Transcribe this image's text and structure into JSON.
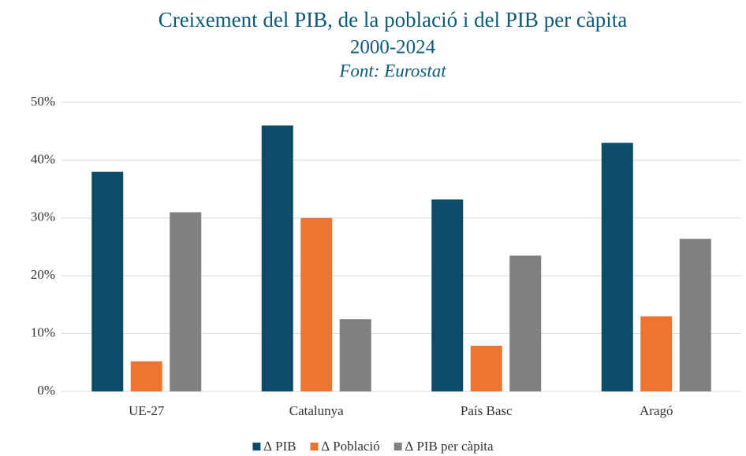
{
  "chart_data": {
    "type": "bar",
    "title": "Creixement del PIB, de la població i del PIB per càpita",
    "subtitle": "2000-2024",
    "source": "Font: Eurostat",
    "categories": [
      "UE-27",
      "Catalunya",
      "País Basc",
      "Aragó"
    ],
    "series": [
      {
        "name": "∆ PIB",
        "color": "#0b4d69",
        "values": [
          38,
          46,
          33.2,
          43
        ]
      },
      {
        "name": "∆ Població",
        "color": "#ed7532",
        "values": [
          5.2,
          30,
          7.9,
          13
        ]
      },
      {
        "name": "∆ PIB per càpita",
        "color": "#808080",
        "values": [
          31,
          12.5,
          23.5,
          26.4
        ]
      }
    ],
    "ylim": [
      0,
      50
    ],
    "yticks": [
      {
        "value": 0,
        "label": "0%"
      },
      {
        "value": 10,
        "label": "10%"
      },
      {
        "value": 20,
        "label": "20%"
      },
      {
        "value": 30,
        "label": "30%"
      },
      {
        "value": 40,
        "label": "40%"
      },
      {
        "value": 50,
        "label": "50%"
      }
    ],
    "grid": true,
    "legend": "bottom"
  }
}
